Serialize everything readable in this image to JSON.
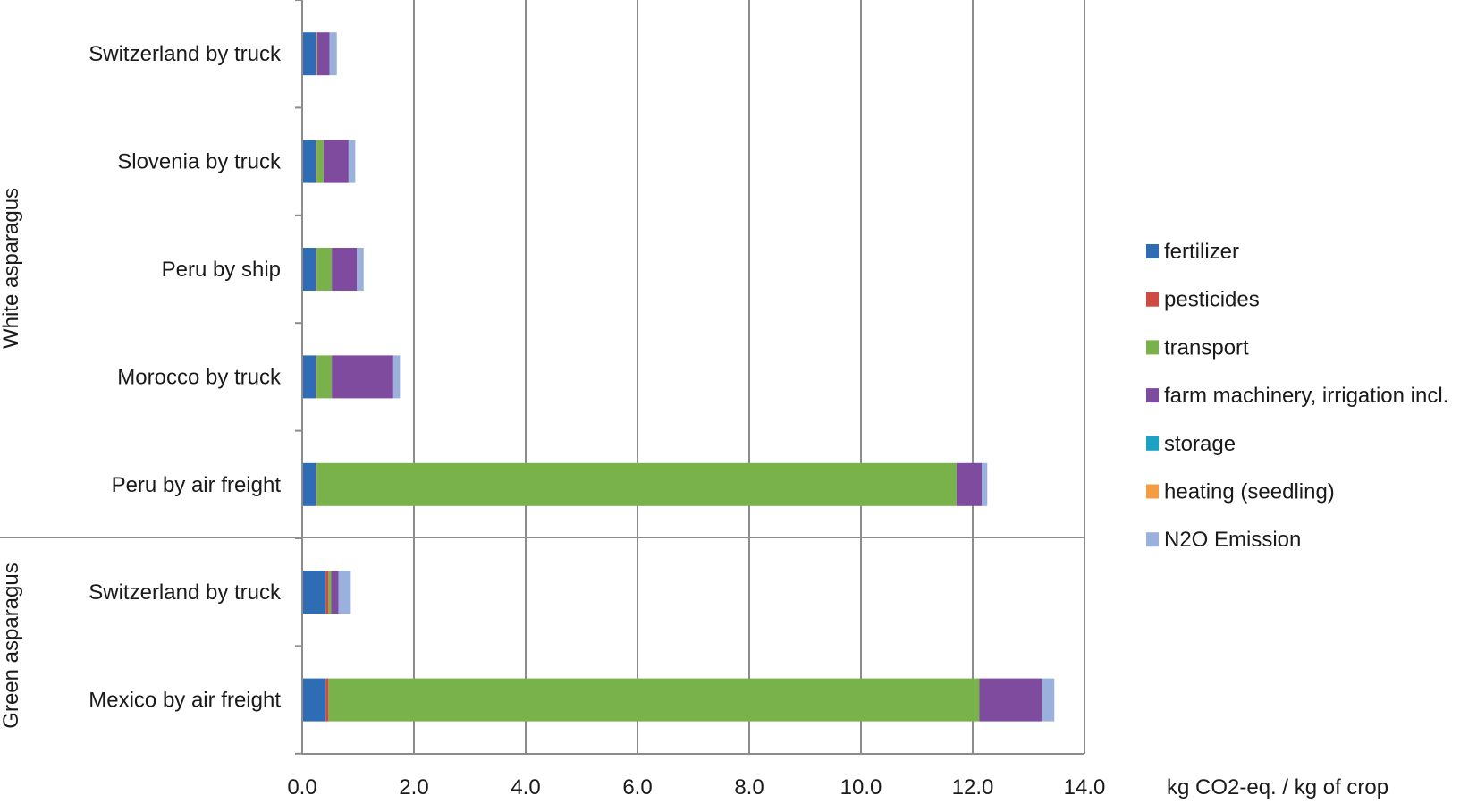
{
  "chart_data": {
    "type": "bar",
    "orientation": "horizontal",
    "stacked": true,
    "title": "",
    "xlabel": "kg CO2-eq. / kg of crop",
    "ylabel": "",
    "xlim": [
      0,
      14
    ],
    "xticks": [
      "0.0",
      "2.0",
      "4.0",
      "6.0",
      "8.0",
      "10.0",
      "12.0",
      "14.0"
    ],
    "grid": "vertical",
    "legend_position": "right",
    "groups": [
      {
        "label": "White asparagus",
        "categories": [
          "Switzerland by truck",
          "Slovenia by truck",
          "Peru by ship",
          "Morocco by truck",
          "Peru by air freight"
        ]
      },
      {
        "label": "Green asparagus",
        "categories": [
          "Switzerland by truck",
          "Mexico by air freight"
        ]
      }
    ],
    "categories": [
      "Switzerland by truck",
      "Slovenia by truck",
      "Peru by ship",
      "Morocco by truck",
      "Peru by air freight",
      "Switzerland by truck",
      "Mexico by air freight"
    ],
    "series": [
      {
        "name": "fertilizer",
        "color": "#2e6db4",
        "values": [
          0.25,
          0.25,
          0.25,
          0.25,
          0.25,
          0.42,
          0.42
        ]
      },
      {
        "name": "pesticides",
        "color": "#d04a43",
        "values": [
          0.01,
          0.01,
          0.01,
          0.01,
          0.01,
          0.05,
          0.05
        ]
      },
      {
        "name": "transport",
        "color": "#79b24a",
        "values": [
          0.01,
          0.12,
          0.27,
          0.27,
          11.45,
          0.05,
          11.65
        ]
      },
      {
        "name": "farm machinery, irrigation incl.",
        "color": "#7f4b9e",
        "values": [
          0.22,
          0.45,
          0.45,
          1.1,
          0.45,
          0.13,
          1.12
        ]
      },
      {
        "name": "storage",
        "color": "#1aa3c2",
        "values": [
          0.0,
          0.0,
          0.0,
          0.0,
          0.0,
          0.0,
          0.0
        ]
      },
      {
        "name": "heating (seedling)",
        "color": "#f39c41",
        "values": [
          0.0,
          0.0,
          0.0,
          0.0,
          0.0,
          0.0,
          0.0
        ]
      },
      {
        "name": "N2O Emission",
        "color": "#9ab1dc",
        "values": [
          0.13,
          0.12,
          0.12,
          0.12,
          0.1,
          0.22,
          0.22
        ]
      }
    ]
  }
}
